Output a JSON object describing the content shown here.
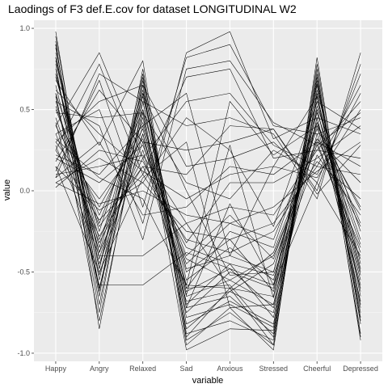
{
  "chart_data": {
    "type": "line",
    "title": "Laodings of F3 def.E.cov for dataset LONGITUDINAL W2",
    "xlabel": "variable",
    "ylabel": "value",
    "categories": [
      "Happy",
      "Angry",
      "Relaxed",
      "Sad",
      "Anxious",
      "Stressed",
      "Cheerful",
      "Depressed"
    ],
    "ylim": [
      -1.05,
      1.05
    ],
    "yticks": [
      -1.0,
      -0.5,
      0.0,
      0.5,
      1.0
    ],
    "ytick_labels": [
      "-1.0",
      "-0.5",
      "0.0",
      "0.5",
      "1.0"
    ],
    "grid": true,
    "legend": "none",
    "colors": {
      "panel": "#ebebeb",
      "grid_major": "#ffffff",
      "grid_minor": "#f5f5f5",
      "line": "#000000"
    },
    "series": [
      {
        "values": [
          0.98,
          -0.62,
          0.7,
          -0.95,
          -0.72,
          -0.98,
          0.82,
          -0.88
        ]
      },
      {
        "values": [
          0.95,
          -0.55,
          0.65,
          -0.9,
          -0.6,
          -0.95,
          0.75,
          -0.92
        ]
      },
      {
        "values": [
          0.92,
          -0.85,
          0.55,
          -0.72,
          -0.65,
          -0.88,
          0.6,
          -0.75
        ]
      },
      {
        "values": [
          0.9,
          -0.7,
          0.6,
          -0.6,
          -0.58,
          -0.9,
          0.7,
          -0.8
        ]
      },
      {
        "values": [
          0.88,
          -0.48,
          0.72,
          -0.78,
          -0.7,
          -0.84,
          0.65,
          -0.7
        ]
      },
      {
        "values": [
          0.85,
          -0.6,
          0.5,
          -0.85,
          -0.62,
          -0.75,
          0.58,
          -0.62
        ]
      },
      {
        "values": [
          0.82,
          -0.42,
          0.45,
          -0.65,
          -0.55,
          -0.7,
          0.5,
          -0.55
        ]
      },
      {
        "values": [
          0.8,
          -0.35,
          0.62,
          -0.7,
          -0.45,
          -0.78,
          0.45,
          -0.68
        ]
      },
      {
        "values": [
          0.75,
          -0.52,
          0.4,
          -0.58,
          -0.6,
          -0.65,
          0.55,
          -0.5
        ]
      },
      {
        "values": [
          0.72,
          -0.3,
          0.35,
          -0.75,
          -0.5,
          -0.6,
          0.62,
          -0.45
        ]
      },
      {
        "values": [
          0.7,
          -0.25,
          0.58,
          -0.55,
          -0.35,
          -0.55,
          0.4,
          -0.6
        ]
      },
      {
        "values": [
          0.65,
          -0.45,
          0.3,
          -0.62,
          -0.48,
          -0.72,
          0.35,
          -0.38
        ]
      },
      {
        "values": [
          0.6,
          -0.2,
          0.5,
          -0.48,
          -0.4,
          -0.5,
          0.48,
          -0.3
        ]
      },
      {
        "values": [
          0.55,
          -0.38,
          0.25,
          -0.68,
          -0.62,
          -0.45,
          0.3,
          -0.42
        ]
      },
      {
        "values": [
          0.5,
          -0.15,
          0.42,
          -0.5,
          -0.3,
          -0.62,
          0.52,
          -0.25
        ]
      },
      {
        "values": [
          0.45,
          -0.32,
          0.2,
          -0.42,
          -0.55,
          -0.4,
          0.28,
          -0.35
        ]
      },
      {
        "values": [
          0.4,
          -0.1,
          0.38,
          -0.6,
          -0.25,
          -0.35,
          0.42,
          -0.2
        ]
      },
      {
        "values": [
          0.35,
          -0.28,
          0.15,
          -0.35,
          -0.45,
          -0.52,
          0.22,
          -0.15
        ]
      },
      {
        "values": [
          0.3,
          -0.05,
          0.32,
          -0.45,
          -0.2,
          -0.3,
          0.38,
          -0.1
        ]
      },
      {
        "values": [
          0.25,
          -0.18,
          0.1,
          -0.3,
          -0.38,
          -0.25,
          0.18,
          -0.05
        ]
      },
      {
        "values": [
          0.2,
          0.05,
          0.28,
          -0.4,
          -0.15,
          -0.42,
          0.32,
          0.05
        ]
      },
      {
        "values": [
          0.15,
          -0.12,
          0.05,
          -0.25,
          -0.3,
          -0.2,
          0.15,
          0.1
        ]
      },
      {
        "values": [
          0.1,
          0.15,
          0.22,
          -0.2,
          -0.1,
          -0.15,
          0.25,
          0.2
        ]
      },
      {
        "values": [
          0.05,
          -0.08,
          0.0,
          -0.15,
          -0.2,
          -0.1,
          0.12,
          0.3
        ]
      },
      {
        "values": [
          0.02,
          0.25,
          0.18,
          -0.32,
          0.05,
          0.05,
          0.2,
          0.4
        ]
      },
      {
        "values": [
          0.62,
          0.35,
          0.12,
          -0.05,
          0.1,
          0.15,
          0.08,
          0.5
        ]
      },
      {
        "values": [
          0.48,
          0.45,
          0.48,
          0.05,
          -0.05,
          0.25,
          0.1,
          0.6
        ]
      },
      {
        "values": [
          0.3,
          0.55,
          0.65,
          0.15,
          0.2,
          0.3,
          0.05,
          0.72
        ]
      },
      {
        "values": [
          0.18,
          0.62,
          0.3,
          0.25,
          0.3,
          0.38,
          0.0,
          0.78
        ]
      },
      {
        "values": [
          0.08,
          0.72,
          0.55,
          0.4,
          0.45,
          0.35,
          -0.05,
          0.85
        ]
      },
      {
        "values": [
          0.4,
          0.85,
          0.2,
          0.55,
          0.6,
          0.28,
          0.15,
          0.65
        ]
      },
      {
        "values": [
          0.25,
          0.78,
          0.1,
          0.7,
          0.75,
          0.2,
          0.25,
          0.55
        ]
      },
      {
        "values": [
          0.12,
          0.68,
          -0.1,
          0.82,
          0.9,
          0.4,
          0.35,
          0.45
        ]
      },
      {
        "values": [
          0.35,
          0.5,
          -0.2,
          0.85,
          0.98,
          0.32,
          0.45,
          0.35
        ]
      },
      {
        "values": [
          0.55,
          0.4,
          -0.3,
          0.75,
          0.8,
          0.42,
          0.28,
          0.48
        ]
      },
      {
        "values": [
          0.68,
          0.28,
          0.8,
          -0.88,
          -0.8,
          -0.92,
          0.78,
          -0.82
        ]
      },
      {
        "values": [
          0.78,
          -0.75,
          0.68,
          -0.82,
          -0.68,
          -0.82,
          0.68,
          -0.78
        ]
      },
      {
        "values": [
          0.9,
          -0.65,
          0.75,
          -0.92,
          -0.75,
          -0.95,
          0.72,
          -0.9
        ]
      },
      {
        "values": [
          0.6,
          -0.8,
          0.48,
          -0.98,
          -0.85,
          -0.86,
          0.6,
          -0.72
        ]
      },
      {
        "values": [
          0.42,
          -0.58,
          -0.58,
          -0.38,
          -0.48,
          -0.58,
          0.05,
          -0.4
        ]
      },
      {
        "values": [
          0.28,
          -0.4,
          -0.4,
          -0.2,
          -0.6,
          -0.38,
          0.32,
          -0.22
        ]
      },
      {
        "values": [
          0.15,
          -0.5,
          0.08,
          0.3,
          -0.72,
          -0.7,
          0.45,
          -0.58
        ]
      },
      {
        "values": [
          0.22,
          0.1,
          0.4,
          0.6,
          -0.4,
          0.15,
          0.58,
          -0.48
        ]
      },
      {
        "values": [
          0.05,
          0.2,
          0.05,
          0.45,
          0.25,
          -0.22,
          0.55,
          0.38
        ]
      },
      {
        "values": [
          0.52,
          -0.22,
          0.15,
          0.1,
          0.4,
          0.38,
          -0.02,
          0.28
        ]
      },
      {
        "values": [
          0.32,
          0.08,
          -0.05,
          -0.58,
          0.55,
          0.22,
          0.4,
          -0.12
        ]
      },
      {
        "values": [
          0.72,
          -0.38,
          0.55,
          -0.72,
          -0.08,
          -0.58,
          0.66,
          -0.65
        ]
      },
      {
        "values": [
          0.58,
          -0.6,
          0.35,
          -0.64,
          0.28,
          -0.66,
          0.5,
          -0.52
        ]
      },
      {
        "values": [
          0.82,
          -0.48,
          0.6,
          0.0,
          -0.52,
          -0.5,
          0.42,
          -0.33
        ]
      },
      {
        "values": [
          0.08,
          0.3,
          -0.15,
          -0.1,
          0.15,
          0.1,
          0.3,
          0.15
        ]
      }
    ]
  }
}
